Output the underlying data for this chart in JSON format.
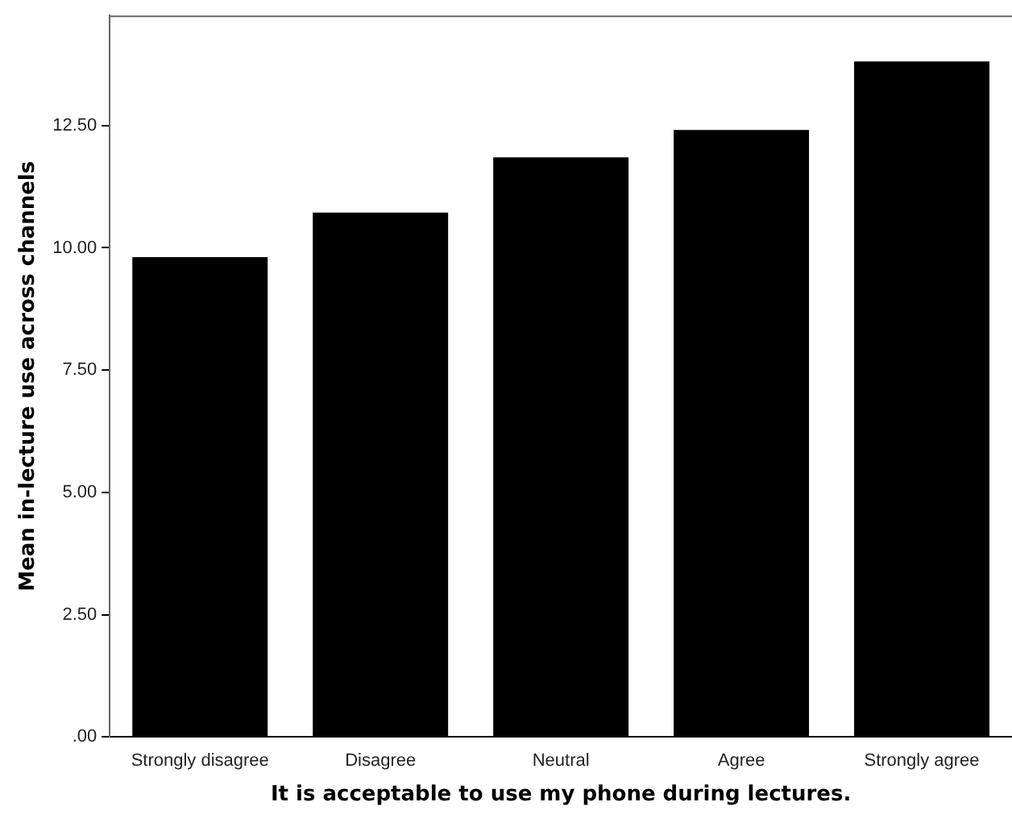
{
  "chart_data": {
    "type": "bar",
    "xlabel": "It is acceptable to use my phone during lectures.",
    "ylabel": "Mean in-lecture use across channels",
    "categories": [
      "Strongly disagree",
      "Disagree",
      "Neutral",
      "Agree",
      "Strongly agree"
    ],
    "values": [
      9.81,
      10.72,
      11.85,
      12.41,
      13.81
    ],
    "color": "#000000",
    "ylim": [
      0,
      14.75
    ],
    "yticks": [
      {
        "value": 0,
        "label": ".00"
      },
      {
        "value": 2.5,
        "label": "2.50"
      },
      {
        "value": 5,
        "label": "5.00"
      },
      {
        "value": 7.5,
        "label": "7.50"
      },
      {
        "value": 10,
        "label": "10.00"
      },
      {
        "value": 12.5,
        "label": "12.50"
      }
    ],
    "grid": false,
    "legend": false
  }
}
